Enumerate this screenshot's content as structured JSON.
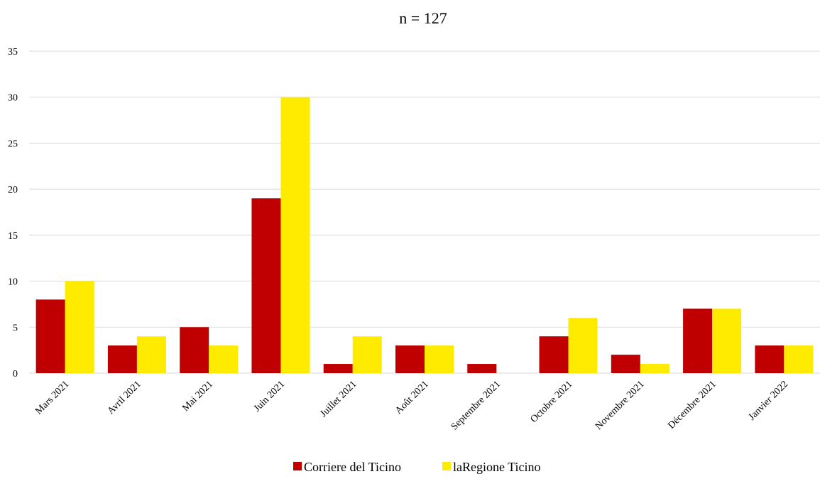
{
  "chart_data": {
    "type": "bar",
    "title": "n = 127",
    "xlabel": "",
    "ylabel": "",
    "ylim": [
      0,
      35
    ],
    "yticks": [
      0,
      5,
      10,
      15,
      20,
      25,
      30,
      35
    ],
    "grid": true,
    "legend_position": "bottom",
    "categories": [
      "Mars 2021",
      "Avril 2021",
      "Mai 2021",
      "Juin 2021",
      "Juillet 2021",
      "Août 2021",
      "Septembre 2021",
      "Octobre 2021",
      "Novembre 2021",
      "Décembre 2021",
      "Janvier 2022"
    ],
    "series": [
      {
        "name": "Corriere del Ticino",
        "color": "#c00000",
        "values": [
          8,
          3,
          5,
          19,
          1,
          3,
          1,
          4,
          2,
          7,
          3
        ]
      },
      {
        "name": "laRegione Ticino",
        "color": "#ffeb00",
        "values": [
          10,
          4,
          3,
          30,
          4,
          3,
          0,
          6,
          1,
          7,
          3
        ]
      }
    ]
  }
}
